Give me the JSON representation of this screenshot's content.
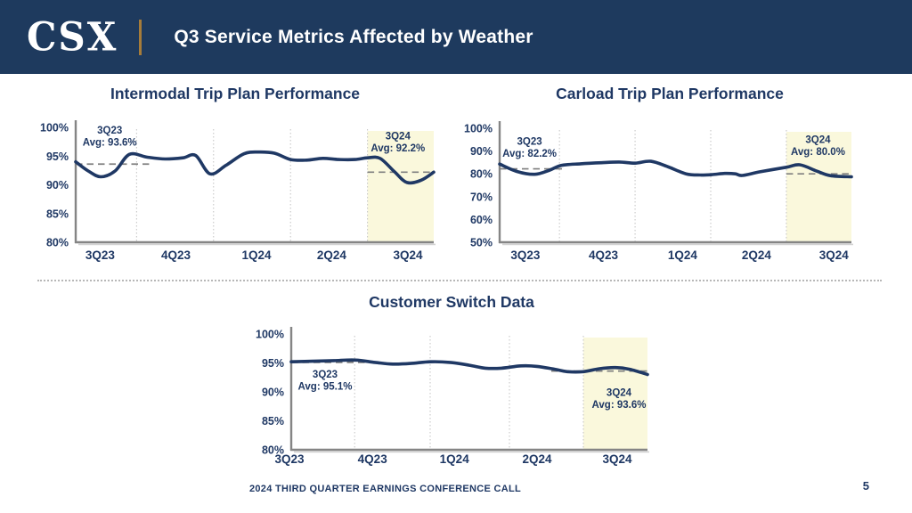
{
  "header": {
    "logo_text": "CSX",
    "title": "Q3 Service Metrics Affected by Weather"
  },
  "footer": {
    "text": "2024 THIRD QUARTER EARNINGS CONFERENCE CALL",
    "page_number": "5"
  },
  "colors": {
    "header_bg": "#1E3A5E",
    "navy": "#1F3864",
    "gold": "#A67C3A",
    "highlight_yellow": "#FAF8DC",
    "dash_gray": "#7F7F7F",
    "axis_gray": "#858585",
    "axis_shadow": "#D2D2D2",
    "grid_gray": "#C2C2C2"
  },
  "chart_data": [
    {
      "id": "intermodal",
      "type": "line",
      "title": "Intermodal Trip Plan Performance",
      "x_categories": [
        "3Q23",
        "4Q23",
        "1Q24",
        "2Q24",
        "3Q24"
      ],
      "y_ticks": [
        100,
        95,
        90,
        85,
        80
      ],
      "y_tick_suffix": "%",
      "ylim": [
        80,
        100
      ],
      "highlighted_quarter": "3Q24",
      "highlight_x_range": [
        0.815,
        1.0
      ],
      "series": [
        {
          "name": "Intermodal Trip Plan Performance",
          "x_frac": [
            0,
            0.035,
            0.07,
            0.11,
            0.15,
            0.2,
            0.25,
            0.3,
            0.335,
            0.375,
            0.42,
            0.47,
            0.51,
            0.555,
            0.6,
            0.645,
            0.69,
            0.735,
            0.78,
            0.815,
            0.85,
            0.89,
            0.925,
            0.965,
            1.0
          ],
          "values_pct": [
            94.0,
            92.4,
            91.4,
            92.4,
            95.3,
            94.8,
            94.5,
            94.7,
            95.1,
            91.9,
            93.4,
            95.4,
            95.7,
            95.5,
            94.4,
            94.3,
            94.6,
            94.4,
            94.4,
            94.7,
            94.6,
            92.3,
            90.4,
            90.8,
            92.2
          ]
        }
      ],
      "avg_annotations": [
        {
          "quarter": "3Q23",
          "label": "Avg: 93.6%",
          "value": 93.6,
          "dash_x_range": [
            0,
            0.205
          ],
          "label_x": 0.095,
          "label_y_value": 98.9
        },
        {
          "quarter": "3Q24",
          "label": "Avg: 92.2%",
          "value": 92.2,
          "dash_x_range": [
            0.815,
            1.0
          ],
          "label_x": 0.9,
          "label_y_value": 97.9
        }
      ]
    },
    {
      "id": "carload",
      "type": "line",
      "title": "Carload Trip Plan Performance",
      "x_categories": [
        "3Q23",
        "4Q23",
        "1Q24",
        "2Q24",
        "3Q24"
      ],
      "y_ticks": [
        100,
        90,
        80,
        70,
        60,
        50
      ],
      "y_tick_suffix": "%",
      "ylim": [
        50,
        100
      ],
      "highlighted_quarter": "3Q24",
      "highlight_x_range": [
        0.815,
        1.0
      ],
      "series": [
        {
          "name": "Carload Trip Plan Performance",
          "x_frac": [
            0,
            0.05,
            0.1,
            0.14,
            0.175,
            0.23,
            0.29,
            0.34,
            0.385,
            0.43,
            0.48,
            0.53,
            0.57,
            0.605,
            0.64,
            0.67,
            0.69,
            0.74,
            0.815,
            0.853,
            0.9,
            0.94,
            1.0
          ],
          "values_pct": [
            84.3,
            81.0,
            79.8,
            81.5,
            83.7,
            84.4,
            84.9,
            85.2,
            84.7,
            85.5,
            83.0,
            80.0,
            79.5,
            79.7,
            80.2,
            80.0,
            79.3,
            80.9,
            82.9,
            84.0,
            81.3,
            79.2,
            78.7
          ]
        }
      ],
      "avg_annotations": [
        {
          "quarter": "3Q23",
          "label": "Avg: 82.2%",
          "value": 82.2,
          "dash_x_range": [
            0,
            0.182
          ],
          "label_x": 0.085,
          "label_y_value": 92.8
        },
        {
          "quarter": "3Q24",
          "label": "Avg: 80.0%",
          "value": 80.0,
          "dash_x_range": [
            0.815,
            1.0
          ],
          "label_x": 0.905,
          "label_y_value": 93.6
        }
      ]
    },
    {
      "id": "customer",
      "type": "line",
      "title": "Customer Switch Data",
      "x_categories": [
        "3Q23",
        "4Q23",
        "1Q24",
        "2Q24",
        "3Q24"
      ],
      "y_ticks": [
        100,
        95,
        90,
        85,
        80
      ],
      "y_tick_suffix": "%",
      "ylim": [
        80,
        100
      ],
      "highlighted_quarter": "3Q24",
      "highlight_x_range": [
        0.82,
        1.0
      ],
      "series": [
        {
          "name": "Customer Switch Data",
          "x_frac": [
            0,
            0.06,
            0.12,
            0.18,
            0.235,
            0.285,
            0.335,
            0.39,
            0.445,
            0.5,
            0.545,
            0.59,
            0.645,
            0.69,
            0.74,
            0.775,
            0.82,
            0.865,
            0.91,
            0.95,
            1.0
          ],
          "values_pct": [
            95.2,
            95.3,
            95.4,
            95.5,
            95.1,
            94.8,
            94.9,
            95.2,
            95.1,
            94.6,
            94.1,
            94.1,
            94.5,
            94.4,
            93.9,
            93.5,
            93.5,
            94.0,
            94.2,
            93.9,
            93.0
          ]
        }
      ],
      "avg_annotations": [
        {
          "quarter": "3Q23",
          "label": "Avg: 95.1%",
          "value": 95.1,
          "dash_x_range": [
            0,
            0.235
          ],
          "label_x": 0.095,
          "label_y_value": 92.5
        },
        {
          "quarter": "3Q24",
          "label": "Avg: 93.6%",
          "value": 93.6,
          "dash_x_range": [
            0.73,
            1.0
          ],
          "label_x": 0.92,
          "label_y_value": 89.3
        }
      ]
    }
  ]
}
